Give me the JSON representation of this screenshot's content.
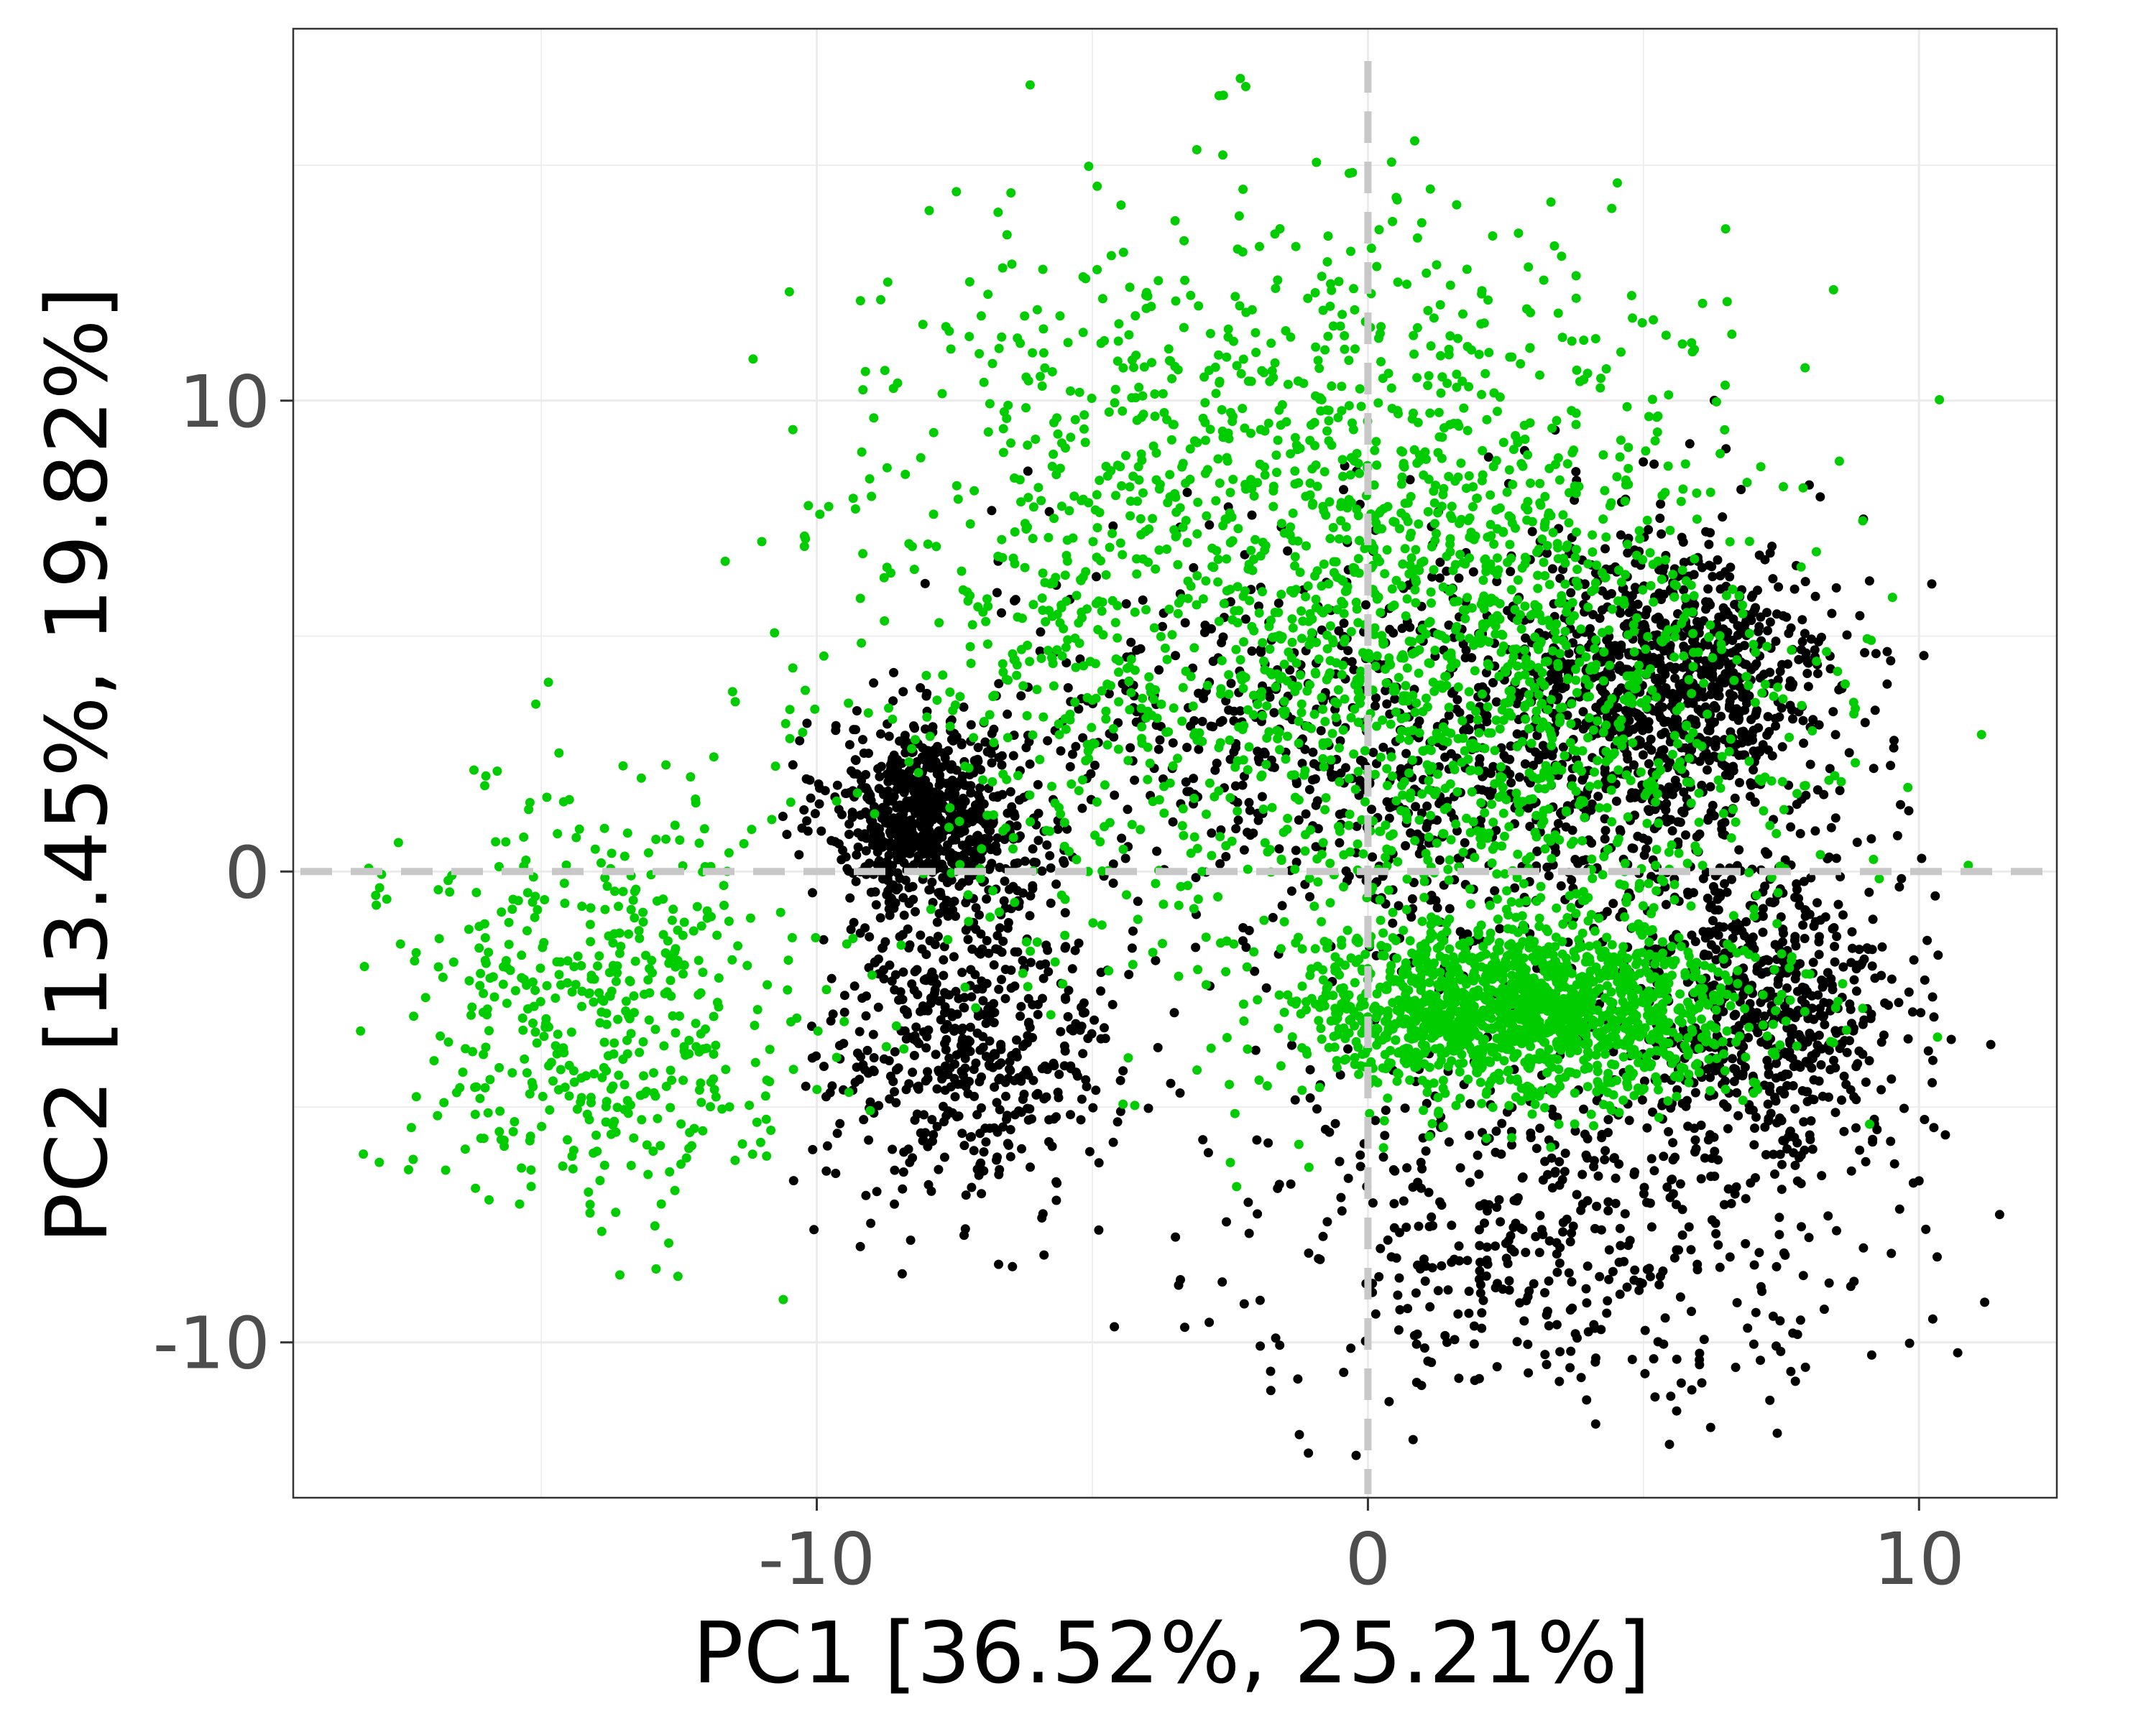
{
  "chart_data": {
    "type": "scatter",
    "title": "",
    "xlabel": "PC1 [36.52%, 25.21%]",
    "ylabel": "PC2 [13.45%, 19.82%]",
    "xlim": [
      -19.5,
      12.5
    ],
    "ylim": [
      -13.3,
      17.9
    ],
    "x_ticks": [
      -10,
      0,
      10
    ],
    "x_tick_labels": [
      "-10",
      "0",
      "10"
    ],
    "y_ticks": [
      -10,
      0,
      10
    ],
    "y_tick_labels": [
      "-10",
      "0",
      "10"
    ],
    "grid": true,
    "reference_lines": {
      "x": 0,
      "y": 0,
      "style": "dashed",
      "color": "#c8c8c8"
    },
    "legend": "none",
    "colors": {
      "series_a": "#000000",
      "series_b": "#00cc00",
      "grid": "#ebebeb",
      "reference": "#c8c8c8"
    },
    "series": [
      {
        "color": "#000000",
        "clusters": [
          {
            "cx": -8.0,
            "cy": 1.2,
            "sx": 0.9,
            "sy": 1.0,
            "n": 700
          },
          {
            "cx": -7.2,
            "cy": -3.5,
            "sx": 1.3,
            "sy": 1.8,
            "n": 550
          },
          {
            "cx": 5.5,
            "cy": 4.0,
            "sx": 1.5,
            "sy": 1.5,
            "n": 750
          },
          {
            "cx": 7.2,
            "cy": -3.0,
            "sx": 1.3,
            "sy": 1.6,
            "n": 650
          },
          {
            "cx": 3.0,
            "cy": 2.5,
            "sx": 2.6,
            "sy": 2.5,
            "n": 800
          },
          {
            "cx": 3.5,
            "cy": -7.5,
            "sx": 3.0,
            "sy": 1.8,
            "n": 500
          },
          {
            "cx": -3.0,
            "cy": 3.0,
            "sx": 2.5,
            "sy": 2.0,
            "n": 300
          }
        ]
      },
      {
        "color": "#00cc00",
        "clusters": [
          {
            "cx": 2.8,
            "cy": -3.0,
            "sx": 2.0,
            "sy": 0.9,
            "n": 1500
          },
          {
            "cx": -14.0,
            "cy": -3.0,
            "sx": 1.9,
            "sy": 2.2,
            "n": 500
          },
          {
            "cx": -1.5,
            "cy": 8.0,
            "sx": 3.8,
            "sy": 2.9,
            "n": 1100
          },
          {
            "cx": 2.5,
            "cy": 3.0,
            "sx": 2.7,
            "sy": 3.0,
            "n": 1000
          },
          {
            "cx": -5.0,
            "cy": 2.0,
            "sx": 3.0,
            "sy": 3.0,
            "n": 300
          }
        ]
      }
    ]
  }
}
